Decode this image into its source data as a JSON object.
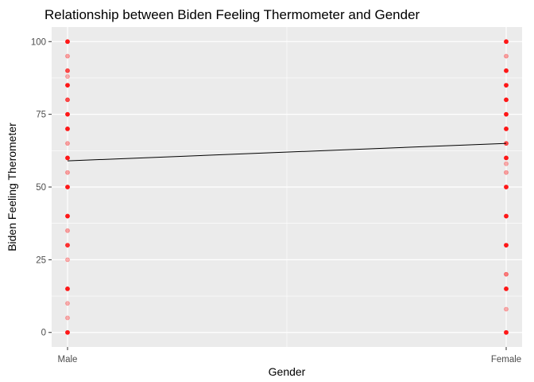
{
  "chart_data": {
    "type": "scatter",
    "title": "Relationship between Biden Feeling Thermometer and Gender",
    "xlabel": "Gender",
    "ylabel": "Biden Feeling Therometer",
    "categories": [
      "Male",
      "Female"
    ],
    "ylim": [
      -5,
      105
    ],
    "yticks": [
      0,
      25,
      50,
      75,
      100
    ],
    "grid": true,
    "colors": {
      "panel": "#EBEBEB",
      "grid": "#FFFFFF",
      "points": "#FF0000",
      "line": "#000000",
      "tick": "#333333"
    },
    "series": [
      {
        "category": "Male",
        "points": [
          {
            "y": 100,
            "opacity": 0.9
          },
          {
            "y": 95,
            "opacity": 0.35
          },
          {
            "y": 90,
            "opacity": 0.7
          },
          {
            "y": 88,
            "opacity": 0.3
          },
          {
            "y": 85,
            "opacity": 0.9
          },
          {
            "y": 80,
            "opacity": 0.7
          },
          {
            "y": 75,
            "opacity": 0.9
          },
          {
            "y": 70,
            "opacity": 0.9
          },
          {
            "y": 65,
            "opacity": 0.35
          },
          {
            "y": 60,
            "opacity": 0.9
          },
          {
            "y": 55,
            "opacity": 0.35
          },
          {
            "y": 50,
            "opacity": 0.9
          },
          {
            "y": 40,
            "opacity": 0.9
          },
          {
            "y": 35,
            "opacity": 0.35
          },
          {
            "y": 30,
            "opacity": 0.8
          },
          {
            "y": 25,
            "opacity": 0.3
          },
          {
            "y": 15,
            "opacity": 0.9
          },
          {
            "y": 10,
            "opacity": 0.3
          },
          {
            "y": 5,
            "opacity": 0.3
          },
          {
            "y": 0,
            "opacity": 0.9
          }
        ]
      },
      {
        "category": "Female",
        "points": [
          {
            "y": 100,
            "opacity": 0.9
          },
          {
            "y": 95,
            "opacity": 0.35
          },
          {
            "y": 90,
            "opacity": 0.9
          },
          {
            "y": 85,
            "opacity": 0.9
          },
          {
            "y": 80,
            "opacity": 0.9
          },
          {
            "y": 75,
            "opacity": 0.9
          },
          {
            "y": 70,
            "opacity": 0.9
          },
          {
            "y": 65,
            "opacity": 0.7
          },
          {
            "y": 60,
            "opacity": 0.9
          },
          {
            "y": 58,
            "opacity": 0.3
          },
          {
            "y": 55,
            "opacity": 0.35
          },
          {
            "y": 50,
            "opacity": 0.9
          },
          {
            "y": 40,
            "opacity": 0.9
          },
          {
            "y": 30,
            "opacity": 0.9
          },
          {
            "y": 20,
            "opacity": 0.5
          },
          {
            "y": 15,
            "opacity": 0.9
          },
          {
            "y": 8,
            "opacity": 0.3
          },
          {
            "y": 0,
            "opacity": 0.9
          }
        ]
      }
    ],
    "trend_line": {
      "from": {
        "x": "Male",
        "y": 59
      },
      "to": {
        "x": "Female",
        "y": 65
      }
    }
  }
}
